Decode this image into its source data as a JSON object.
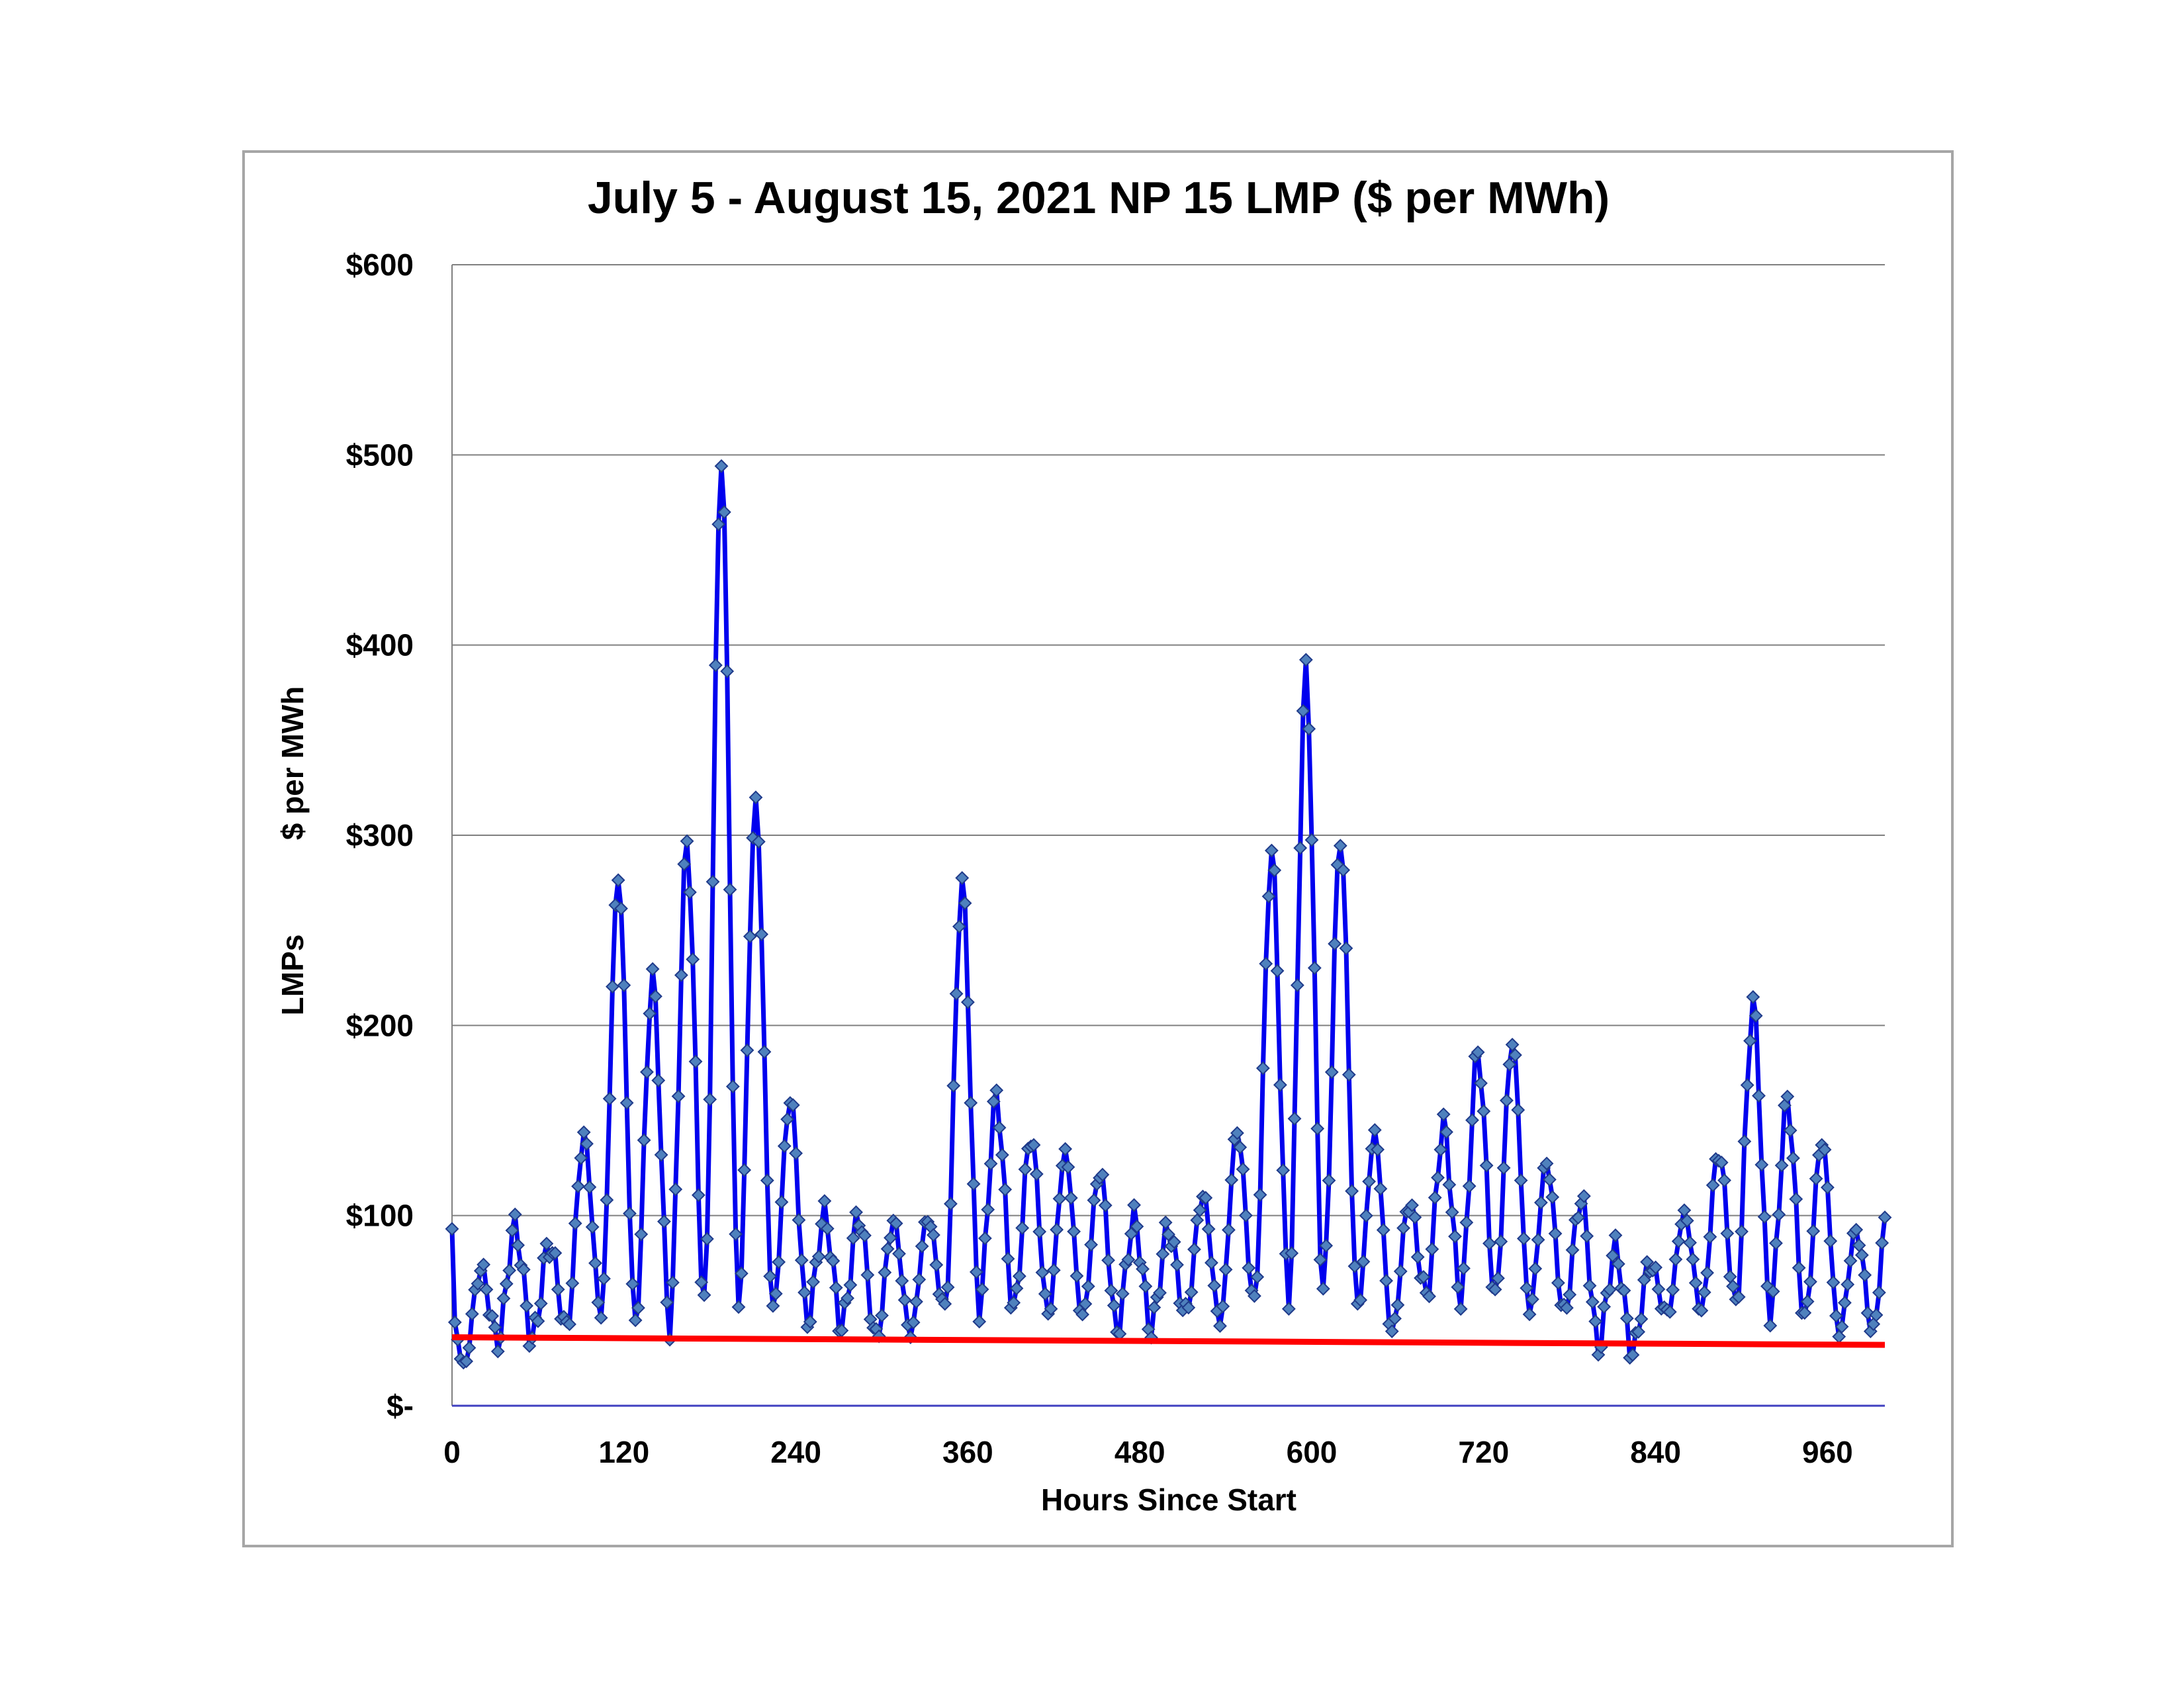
{
  "chart_data": {
    "type": "line",
    "title": "July 5 - August 15, 2021   NP 15 LMP ($ per MWh)",
    "xlabel": "Hours Since Start",
    "ylabel": [
      "LMPs",
      "$ per MWh"
    ],
    "xlim": [
      0,
      1000
    ],
    "ylim": [
      0,
      600
    ],
    "x_ticks": [
      0,
      120,
      240,
      360,
      480,
      600,
      720,
      840,
      960
    ],
    "x_tick_labels": [
      "0",
      "120",
      "240",
      "360",
      "480",
      "600",
      "720",
      "840",
      "960"
    ],
    "y_ticks": [
      0,
      100,
      200,
      300,
      400,
      500,
      600
    ],
    "y_tick_labels": [
      "$-",
      "$100",
      "$200",
      "$300",
      "$400",
      "$500",
      "$600"
    ],
    "grid": true,
    "legend": "none",
    "colors": {
      "series": "#0000ee",
      "marker": "#4f81bd",
      "trend": "#ff0000",
      "frame": "#a6a6a6",
      "grid": "#808080"
    },
    "series": [
      {
        "style": "line-with-diamond-markers",
        "daily_peaks": [
          {
            "x": 20,
            "y": 72
          },
          {
            "x": 44,
            "y": 94
          },
          {
            "x": 68,
            "y": 85
          },
          {
            "x": 92,
            "y": 142
          },
          {
            "x": 116,
            "y": 279
          },
          {
            "x": 140,
            "y": 225
          },
          {
            "x": 164,
            "y": 296
          },
          {
            "x": 188,
            "y": 499
          },
          {
            "x": 212,
            "y": 318
          },
          {
            "x": 236,
            "y": 162
          },
          {
            "x": 260,
            "y": 100
          },
          {
            "x": 284,
            "y": 100
          },
          {
            "x": 308,
            "y": 97
          },
          {
            "x": 332,
            "y": 99
          },
          {
            "x": 356,
            "y": 275
          },
          {
            "x": 380,
            "y": 162
          },
          {
            "x": 404,
            "y": 142
          },
          {
            "x": 428,
            "y": 133
          },
          {
            "x": 452,
            "y": 124
          },
          {
            "x": 476,
            "y": 98
          },
          {
            "x": 500,
            "y": 93
          },
          {
            "x": 524,
            "y": 111
          },
          {
            "x": 548,
            "y": 145
          },
          {
            "x": 572,
            "y": 292
          },
          {
            "x": 596,
            "y": 386
          },
          {
            "x": 620,
            "y": 300
          },
          {
            "x": 644,
            "y": 143
          },
          {
            "x": 668,
            "y": 107
          },
          {
            "x": 692,
            "y": 147
          },
          {
            "x": 716,
            "y": 186
          },
          {
            "x": 740,
            "y": 192
          },
          {
            "x": 764,
            "y": 128
          },
          {
            "x": 788,
            "y": 109
          },
          {
            "x": 812,
            "y": 82
          },
          {
            "x": 836,
            "y": 75
          },
          {
            "x": 860,
            "y": 101
          },
          {
            "x": 884,
            "y": 134
          },
          {
            "x": 908,
            "y": 211
          },
          {
            "x": 932,
            "y": 160
          },
          {
            "x": 956,
            "y": 140
          },
          {
            "x": 980,
            "y": 92
          }
        ],
        "daily_troughs": [
          {
            "x": 2,
            "y": 42
          },
          {
            "x": 8,
            "y": 20
          },
          {
            "x": 32,
            "y": 34
          },
          {
            "x": 56,
            "y": 35
          },
          {
            "x": 80,
            "y": 40
          },
          {
            "x": 104,
            "y": 48
          },
          {
            "x": 128,
            "y": 43
          },
          {
            "x": 152,
            "y": 42
          },
          {
            "x": 176,
            "y": 52
          },
          {
            "x": 200,
            "y": 53
          },
          {
            "x": 224,
            "y": 50
          },
          {
            "x": 248,
            "y": 45
          },
          {
            "x": 272,
            "y": 42
          },
          {
            "x": 296,
            "y": 35
          },
          {
            "x": 320,
            "y": 38
          },
          {
            "x": 344,
            "y": 50
          },
          {
            "x": 368,
            "y": 52
          },
          {
            "x": 392,
            "y": 50
          },
          {
            "x": 416,
            "y": 48
          },
          {
            "x": 440,
            "y": 46
          },
          {
            "x": 464,
            "y": 40
          },
          {
            "x": 488,
            "y": 41
          },
          {
            "x": 512,
            "y": 48
          },
          {
            "x": 536,
            "y": 44
          },
          {
            "x": 560,
            "y": 53
          },
          {
            "x": 584,
            "y": 58
          },
          {
            "x": 608,
            "y": 60
          },
          {
            "x": 632,
            "y": 52
          },
          {
            "x": 656,
            "y": 38
          },
          {
            "x": 680,
            "y": 58
          },
          {
            "x": 704,
            "y": 58
          },
          {
            "x": 728,
            "y": 56
          },
          {
            "x": 752,
            "y": 50
          },
          {
            "x": 776,
            "y": 48
          },
          {
            "x": 800,
            "y": 32
          },
          {
            "x": 824,
            "y": 28
          },
          {
            "x": 848,
            "y": 48
          },
          {
            "x": 872,
            "y": 50
          },
          {
            "x": 896,
            "y": 52
          },
          {
            "x": 920,
            "y": 50
          },
          {
            "x": 944,
            "y": 45
          },
          {
            "x": 968,
            "y": 38
          },
          {
            "x": 992,
            "y": 38
          },
          {
            "x": 1000,
            "y": 93
          }
        ]
      },
      {
        "style": "trendline",
        "x": [
          0,
          1000
        ],
        "y": [
          36,
          32
        ]
      }
    ]
  }
}
